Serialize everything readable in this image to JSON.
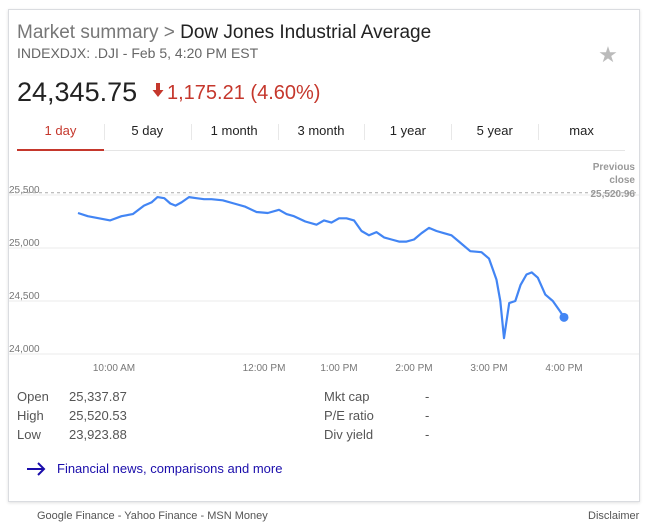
{
  "header": {
    "breadcrumb_root": "Market summary",
    "breadcrumb_sep": ">",
    "title": "Dow Jones Industrial Average",
    "subtitle": "INDEXDJX: .DJI - Feb 5, 4:20 PM EST"
  },
  "quote": {
    "price": "24,345.75",
    "change": "1,175.21 (4.60%)",
    "direction": "down",
    "color_down": "#c5372c"
  },
  "tabs": [
    {
      "label": "1 day",
      "active": true
    },
    {
      "label": "5 day",
      "active": false
    },
    {
      "label": "1 month",
      "active": false
    },
    {
      "label": "3 month",
      "active": false
    },
    {
      "label": "1 year",
      "active": false
    },
    {
      "label": "5 year",
      "active": false
    },
    {
      "label": "max",
      "active": false
    }
  ],
  "chart_data": {
    "type": "line",
    "line_color": "#4285f4",
    "previous_close_label": [
      "Previous",
      "close"
    ],
    "previous_close": 25520.96,
    "previous_close_text": "25,520.96",
    "y_ticks": [
      {
        "v": 25500,
        "label": "25,500"
      },
      {
        "v": 25000,
        "label": "25,000"
      },
      {
        "v": 24500,
        "label": "24,500"
      },
      {
        "v": 24000,
        "label": "24,000"
      }
    ],
    "x_ticks": [
      {
        "t": 10.0,
        "label": "10:00 AM"
      },
      {
        "t": 12.0,
        "label": "12:00 PM"
      },
      {
        "t": 13.0,
        "label": "1:00 PM"
      },
      {
        "t": 14.0,
        "label": "2:00 PM"
      },
      {
        "t": 15.0,
        "label": "3:00 PM"
      },
      {
        "t": 16.0,
        "label": "4:00 PM"
      }
    ],
    "ylim": [
      24000,
      25650
    ],
    "xlim": [
      9.5,
      16.15
    ],
    "series": [
      {
        "x": [
          9.52,
          9.65,
          9.8,
          9.95,
          10.1,
          10.25,
          10.4,
          10.5,
          10.58,
          10.67,
          10.75,
          10.82,
          10.9,
          11.0,
          11.1,
          11.2,
          11.3,
          11.45,
          11.6,
          11.75,
          11.9,
          12.05,
          12.2,
          12.3,
          12.4,
          12.55,
          12.7,
          12.8,
          12.9,
          13.0,
          13.1,
          13.2,
          13.3,
          13.4,
          13.5,
          13.6,
          13.7,
          13.8,
          13.9,
          14.0,
          14.1,
          14.2,
          14.3,
          14.4,
          14.5,
          14.6,
          14.75,
          14.9,
          15.0,
          15.05,
          15.1,
          15.15,
          15.2,
          15.27,
          15.35,
          15.42,
          15.5,
          15.57,
          15.65,
          15.75,
          15.85,
          15.95,
          16.0
        ],
        "y": [
          25330,
          25300,
          25280,
          25260,
          25300,
          25320,
          25400,
          25430,
          25480,
          25470,
          25420,
          25400,
          25430,
          25480,
          25470,
          25460,
          25460,
          25450,
          25420,
          25390,
          25340,
          25330,
          25360,
          25320,
          25300,
          25250,
          25220,
          25260,
          25240,
          25280,
          25280,
          25260,
          25160,
          25120,
          25150,
          25100,
          25080,
          25060,
          25060,
          25080,
          25140,
          25190,
          25160,
          25140,
          25120,
          25060,
          24970,
          24960,
          24900,
          24800,
          24700,
          24500,
          24150,
          24480,
          24500,
          24650,
          24750,
          24770,
          24720,
          24560,
          24500,
          24400,
          24345.75
        ]
      }
    ]
  },
  "stats": {
    "rows": [
      {
        "label": "Open",
        "value": "25,337.87"
      },
      {
        "label": "High",
        "value": "25,520.53"
      },
      {
        "label": "Low",
        "value": "23,923.88"
      }
    ],
    "right_rows": [
      {
        "label": "Mkt cap",
        "value": "-"
      },
      {
        "label": "P/E ratio",
        "value": "-"
      },
      {
        "label": "Div yield",
        "value": "-"
      }
    ]
  },
  "more_link": "Financial news, comparisons and more",
  "footer": {
    "sources": "Google Finance - Yahoo Finance - MSN Money",
    "disclaimer": "Disclaimer"
  },
  "icons": {
    "star": "star-icon",
    "arrow_down": "arrow-down-icon",
    "arrow_right": "arrow-right-icon"
  }
}
